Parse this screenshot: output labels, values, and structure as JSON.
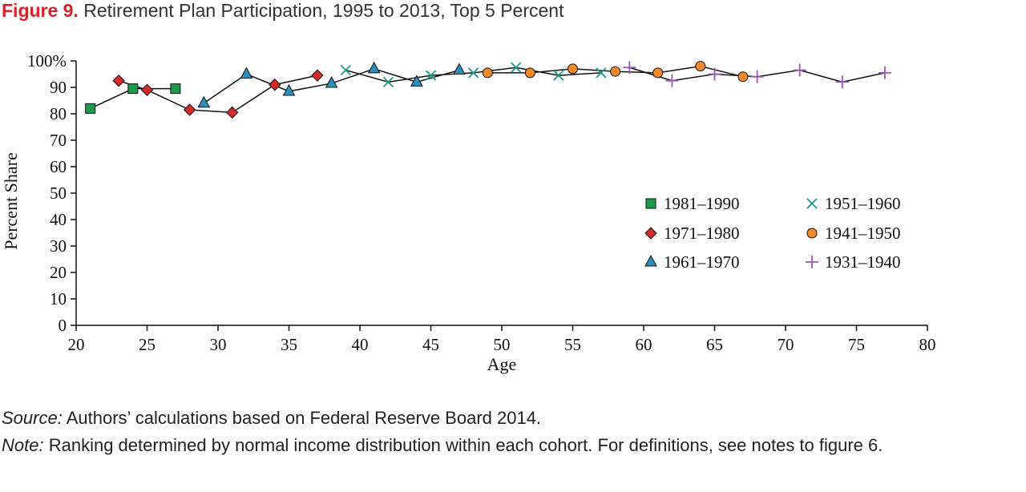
{
  "figure": {
    "label": "Figure 9.",
    "title": "Retirement Plan Participation, 1995 to 2013, Top 5 Percent"
  },
  "notes": {
    "source_label": "Source:",
    "source_text": "Authors’ calculations based on Federal Reserve Board 2014.",
    "note_label": "Note:",
    "note_text": "Ranking determined by normal income distribution within each cohort. For definitions, see notes to figure 6."
  },
  "chart_data": {
    "type": "line",
    "title": "",
    "xlabel": "Age",
    "ylabel": "Percent Share",
    "xlim": [
      20,
      80
    ],
    "ylim": [
      0,
      100
    ],
    "xticks": [
      20,
      25,
      30,
      35,
      40,
      45,
      50,
      55,
      60,
      65,
      70,
      75,
      80
    ],
    "yticks": [
      0,
      10,
      20,
      30,
      40,
      50,
      60,
      70,
      80,
      90,
      100
    ],
    "ytick_labels": [
      "0",
      "10",
      "20",
      "30",
      "40",
      "50",
      "60",
      "70",
      "80",
      "90",
      "100%"
    ],
    "grid": false,
    "legend_position": "center-right",
    "series": [
      {
        "name": "1981–1990",
        "marker": "square",
        "color": "#1a9a4a",
        "x": [
          21,
          24,
          27
        ],
        "y": [
          82,
          89.5,
          89.5
        ]
      },
      {
        "name": "1971–1980",
        "marker": "diamond",
        "color": "#d52a2a",
        "x": [
          23,
          25,
          28,
          31,
          34,
          37
        ],
        "y": [
          92.5,
          89,
          81.5,
          80.5,
          91,
          94.5
        ]
      },
      {
        "name": "1961–1970",
        "marker": "triangle",
        "color": "#2a8fbf",
        "x": [
          29,
          32,
          35,
          38,
          41,
          44,
          47
        ],
        "y": [
          84,
          95,
          88.5,
          91.5,
          97,
          92,
          96.5
        ]
      },
      {
        "name": "1951–1960",
        "marker": "x",
        "color": "#1a9a8a",
        "x": [
          39,
          42,
          45,
          48,
          51,
          54,
          57
        ],
        "y": [
          96.5,
          92,
          94.5,
          95.5,
          97.5,
          94.5,
          95.5
        ]
      },
      {
        "name": "1941–1950",
        "marker": "circle",
        "color": "#f28a2c",
        "x": [
          49,
          52,
          55,
          58,
          61,
          64,
          67
        ],
        "y": [
          95.5,
          95.5,
          97,
          96,
          95.5,
          98,
          94
        ]
      },
      {
        "name": "1931–1940",
        "marker": "plus",
        "color": "#9b59b6",
        "x": [
          59,
          62,
          65,
          68,
          71,
          74,
          77
        ],
        "y": [
          97.5,
          92.5,
          95,
          94,
          96.5,
          92,
          95.5
        ]
      }
    ]
  }
}
